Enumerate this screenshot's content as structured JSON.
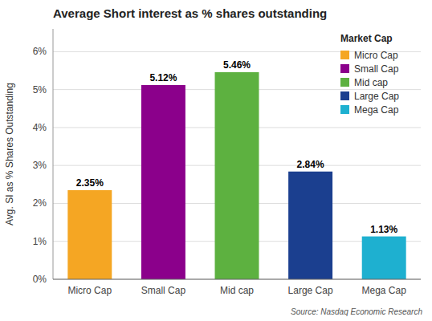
{
  "chart_data": {
    "type": "bar",
    "title": "Average Short interest as % shares outstanding",
    "categories": [
      "Micro Cap",
      "Small Cap",
      "Mid cap",
      "Large Cap",
      "Mega Cap"
    ],
    "values": [
      2.35,
      5.12,
      5.46,
      2.84,
      1.13
    ],
    "value_labels": [
      "2.35%",
      "5.12%",
      "5.46%",
      "2.84%",
      "1.13%"
    ],
    "data_labels": true,
    "colors": [
      "#F5A623",
      "#8B008B",
      "#5DB140",
      "#1B3F8F",
      "#1EB0D0"
    ],
    "ylabel": "Avg. SI as % Shares Outstanding",
    "ylim": [
      0,
      6.6
    ],
    "yticks": [
      {
        "value": 0,
        "label": "0%"
      },
      {
        "value": 1,
        "label": "1%"
      },
      {
        "value": 2,
        "label": "2%"
      },
      {
        "value": 3,
        "label": "3%"
      },
      {
        "value": 4,
        "label": "4%"
      },
      {
        "value": 5,
        "label": "5%"
      },
      {
        "value": 6,
        "label": "6%"
      }
    ],
    "grid": true,
    "legend": "upper right",
    "legend_title": "Market Cap",
    "annotations": [
      "Source: Nasdaq Economic Research"
    ]
  }
}
